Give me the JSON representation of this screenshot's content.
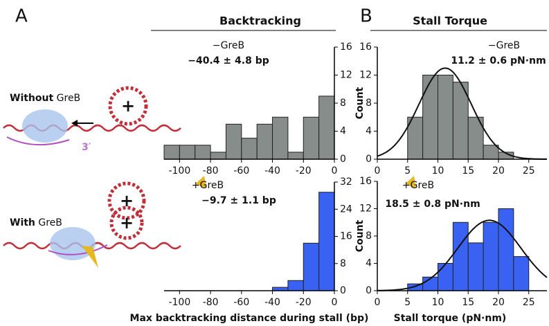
{
  "figure": {
    "panel_a": "A",
    "panel_b": "B",
    "without": [
      "Without",
      "GreB"
    ],
    "with": [
      "With",
      "GreB"
    ],
    "three_prime": "3′",
    "plus": "+"
  },
  "chart_data": [
    {
      "type": "histogram",
      "title": "Backtracking",
      "annotations": [
        "−GreB",
        "−40.4 ± 4.8 bp"
      ],
      "color": "#878d8a",
      "bins": [
        -110,
        -100,
        -90,
        -80,
        -70,
        -60,
        -50,
        -40,
        -30,
        -20,
        -10,
        0
      ],
      "values": [
        2,
        2,
        2,
        1,
        5,
        3,
        5,
        6,
        1,
        6,
        9
      ],
      "xlim": [
        -110,
        0
      ],
      "ylim": [
        0,
        16
      ],
      "xticks": [
        -100,
        -80,
        -60,
        -40,
        -20,
        0
      ],
      "yticks": [
        0,
        4,
        8,
        12,
        16
      ]
    },
    {
      "type": "histogram",
      "annotations": [
        "+GreB",
        "−9.7 ± 1.1 bp"
      ],
      "color": "#3a62f2",
      "xlabel": "Max backtracking distance during stall (bp)",
      "bins": [
        -110,
        -100,
        -90,
        -80,
        -70,
        -60,
        -50,
        -40,
        -30,
        -20,
        -10,
        0
      ],
      "values": [
        0,
        0,
        0,
        0,
        0,
        0,
        0,
        1,
        3,
        14,
        29
      ],
      "xlim": [
        -110,
        0
      ],
      "ylim": [
        0,
        32
      ],
      "xticks": [
        -100,
        -80,
        -60,
        -40,
        -20,
        0
      ],
      "yticks": [
        0,
        8,
        16,
        24,
        32
      ]
    },
    {
      "type": "histogram",
      "title": "Stall Torque",
      "annotations": [
        "−GreB",
        "11.2 ± 0.6 pN·nm"
      ],
      "color": "#878d8a",
      "ylabel": "Count",
      "bins": [
        5,
        7.5,
        10,
        12.5,
        15,
        17.5,
        20,
        22.5
      ],
      "values": [
        6,
        12,
        12,
        11,
        6,
        2,
        1
      ],
      "fit": {
        "amplitude": 13,
        "mean": 11.2,
        "sigma": 4.3
      },
      "xlim": [
        0,
        28
      ],
      "ylim": [
        0,
        16
      ],
      "xticks": [
        0,
        5,
        10,
        15,
        20,
        25
      ],
      "yticks": [
        0,
        4,
        8,
        12,
        16
      ]
    },
    {
      "type": "histogram",
      "annotations": [
        "+GreB",
        "18.5 ± 0.8 pN·nm"
      ],
      "color": "#3a62f2",
      "ylabel": "Count",
      "xlabel": "Stall torque (pN·nm)",
      "bins": [
        5,
        7.5,
        10,
        12.5,
        15,
        17.5,
        20,
        22.5,
        25
      ],
      "values": [
        1,
        2,
        4,
        10,
        7,
        10,
        12,
        5
      ],
      "fit": {
        "amplitude": 10.3,
        "mean": 18.5,
        "sigma": 5.2
      },
      "xlim": [
        0,
        28
      ],
      "ylim": [
        0,
        16
      ],
      "xticks": [
        0,
        5,
        10,
        15,
        20,
        25
      ],
      "yticks": [
        0,
        4,
        8,
        12,
        16
      ]
    }
  ]
}
